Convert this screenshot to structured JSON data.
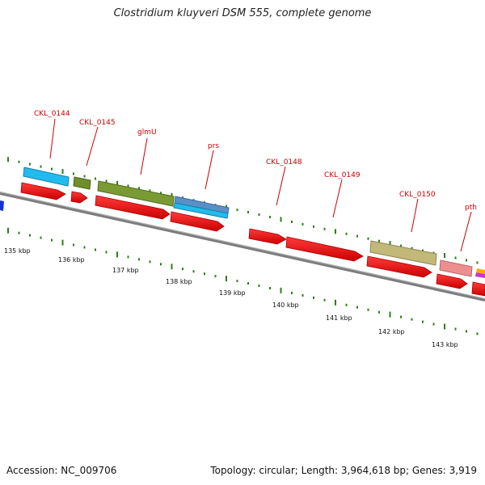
{
  "title": "Clostridium kluyveri DSM 555, complete genome",
  "accession": "Accession: NC_009706",
  "summary": "Topology: circular; Length: 3,964,618 bp; Genes: 3,919",
  "ruler": {
    "tick_labels": [
      "135 kbp",
      "136 kbp",
      "137 kbp",
      "138 kbp",
      "139 kbp",
      "140 kbp",
      "141 kbp",
      "142 kbp",
      "143 kbp"
    ]
  },
  "gene_labels": [
    "CKL_0144",
    "CKL_0145",
    "glmU",
    "prs",
    "CKL_0148",
    "CKL_0149",
    "CKL_0150",
    "pth"
  ],
  "colors": {
    "cds": "#ee1111",
    "backbone": "#888888",
    "tick": "#2e7d1a",
    "label": "#cc0000",
    "cyan": "#22bbee",
    "olive": "#7a9a33",
    "khaki": "#c2b878",
    "pink": "#ee8f8f",
    "steel": "#5b8fc7",
    "blue": "#1133dd"
  }
}
